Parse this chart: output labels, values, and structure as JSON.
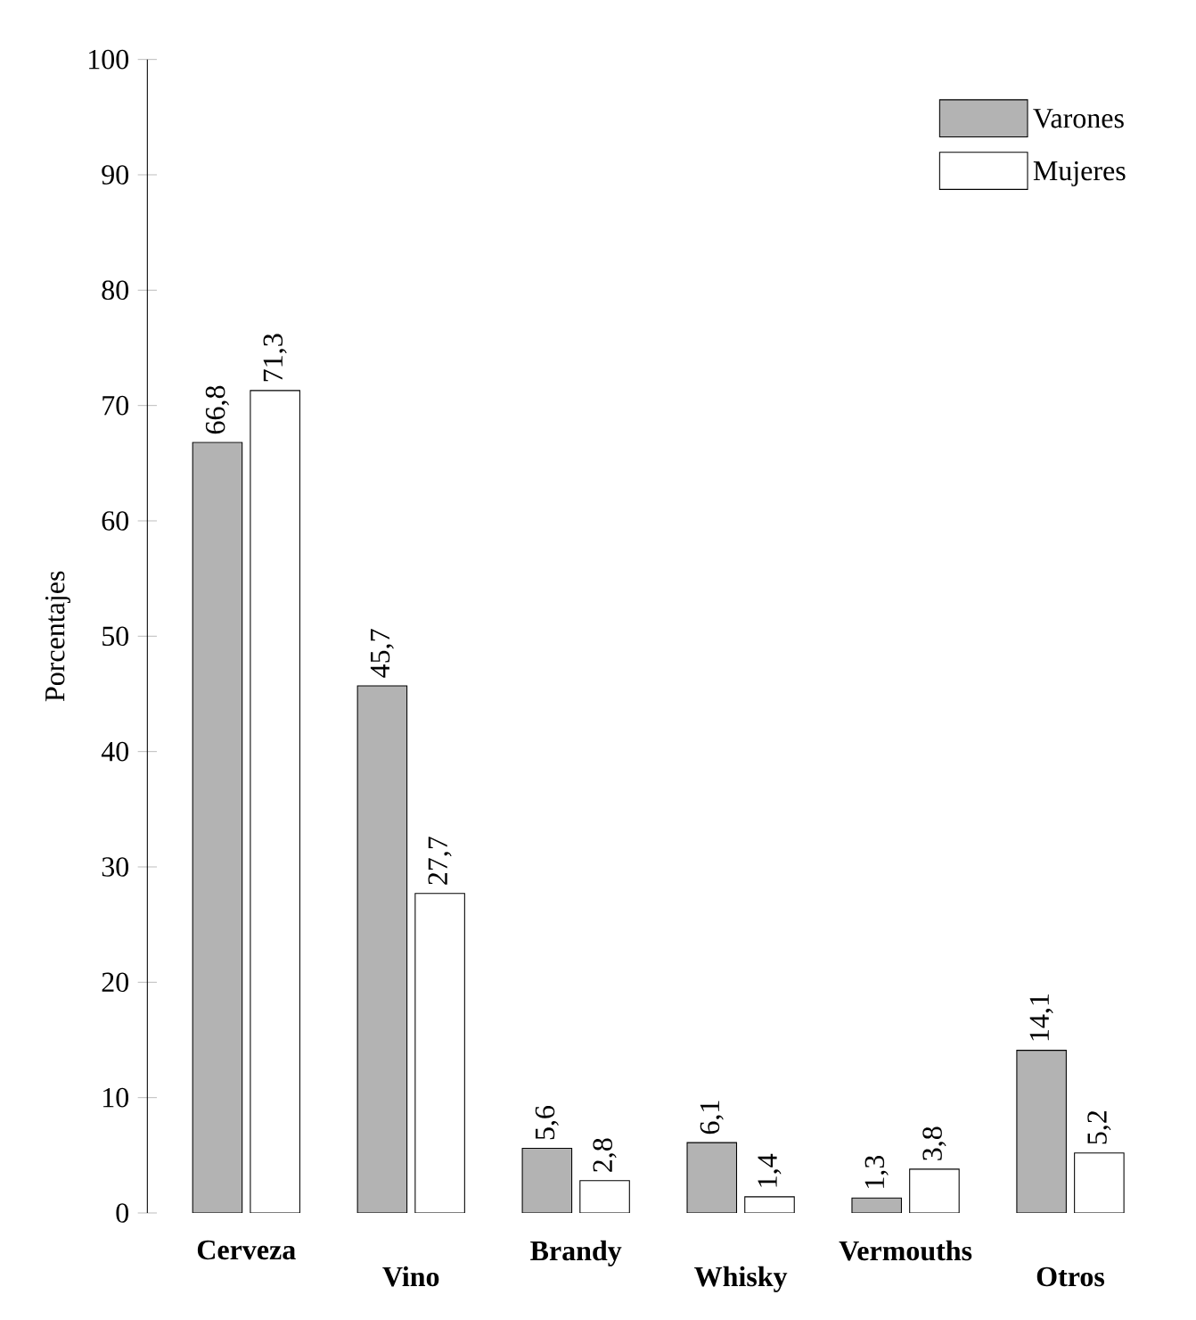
{
  "chart_data": {
    "type": "bar",
    "ylabel": "Porcentajes",
    "categories": [
      "Cerveza",
      "Vino",
      "Brandy",
      "Whisky",
      "Vermouths",
      "Otros"
    ],
    "series": [
      {
        "name": "Varones",
        "color": "#b3b3b3",
        "values": [
          66.8,
          45.7,
          5.6,
          6.1,
          1.3,
          14.1
        ],
        "value_labels": [
          "66,8",
          "45,7",
          "5,6",
          "6,1",
          "1,3",
          "14,1"
        ]
      },
      {
        "name": "Mujeres",
        "color": "#ffffff",
        "values": [
          71.3,
          27.7,
          2.8,
          1.4,
          3.8,
          5.2
        ],
        "value_labels": [
          "71,3",
          "27,7",
          "2,8",
          "1,4",
          "3,8",
          "5,2"
        ]
      }
    ],
    "ylim": [
      0,
      100
    ],
    "yticks": [
      0,
      10,
      20,
      30,
      40,
      50,
      60,
      70,
      80,
      90,
      100
    ],
    "legend": "top right",
    "grid": false
  }
}
